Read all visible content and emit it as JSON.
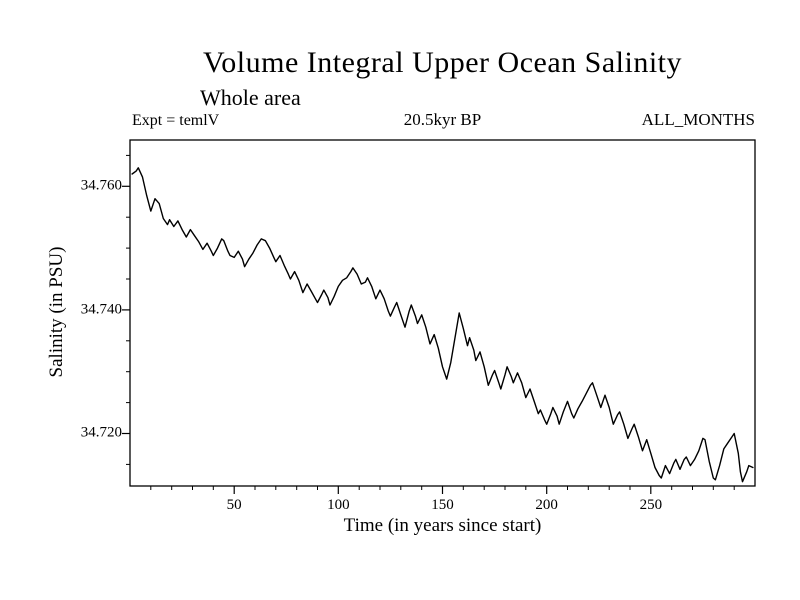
{
  "page": {
    "background": "#ffffff",
    "foreground": "#000000"
  },
  "chart_data": {
    "type": "line",
    "title": "Volume Integral Upper Ocean Salinity",
    "subtitle": "Whole area",
    "annotations": {
      "left": "Expt = temlV",
      "center": "20.5kyr BP",
      "right": "ALL_MONTHS"
    },
    "xlabel": "Time (in years since start)",
    "ylabel": "Salinity (in PSU)",
    "xlim": [
      0,
      300
    ],
    "ylim": [
      34.7115,
      34.7675
    ],
    "x_ticks": [
      50,
      100,
      150,
      200,
      250
    ],
    "x_minor_step": 10,
    "y_ticks": [
      34.72,
      34.74,
      34.76
    ],
    "y_tick_labels": [
      "34.720",
      "34.740",
      "34.760"
    ],
    "y_minor_step": 0.005,
    "grid": false,
    "legend": "none",
    "line_color": "#000000",
    "series": [
      {
        "name": "Volume integral upper ocean salinity",
        "points": [
          [
            1,
            34.762
          ],
          [
            3,
            34.7625
          ],
          [
            4,
            34.763
          ],
          [
            6,
            34.7615
          ],
          [
            8,
            34.7585
          ],
          [
            10,
            34.756
          ],
          [
            12,
            34.758
          ],
          [
            14,
            34.7572
          ],
          [
            16,
            34.7548
          ],
          [
            18,
            34.7538
          ],
          [
            19,
            34.7546
          ],
          [
            21,
            34.7535
          ],
          [
            23,
            34.7544
          ],
          [
            25,
            34.753
          ],
          [
            27,
            34.7518
          ],
          [
            29,
            34.753
          ],
          [
            31,
            34.752
          ],
          [
            33,
            34.751
          ],
          [
            35,
            34.7498
          ],
          [
            37,
            34.7508
          ],
          [
            39,
            34.7495
          ],
          [
            40,
            34.7488
          ],
          [
            42,
            34.75
          ],
          [
            44,
            34.7515
          ],
          [
            45,
            34.7512
          ],
          [
            47,
            34.7495
          ],
          [
            48,
            34.7488
          ],
          [
            50,
            34.7485
          ],
          [
            52,
            34.7495
          ],
          [
            54,
            34.7482
          ],
          [
            55,
            34.747
          ],
          [
            57,
            34.7482
          ],
          [
            59,
            34.7492
          ],
          [
            61,
            34.7505
          ],
          [
            63,
            34.7515
          ],
          [
            65,
            34.7512
          ],
          [
            67,
            34.75
          ],
          [
            69,
            34.7485
          ],
          [
            70,
            34.7478
          ],
          [
            72,
            34.7488
          ],
          [
            74,
            34.7472
          ],
          [
            76,
            34.7458
          ],
          [
            77,
            34.745
          ],
          [
            79,
            34.7462
          ],
          [
            81,
            34.7448
          ],
          [
            83,
            34.7428
          ],
          [
            85,
            34.7442
          ],
          [
            87,
            34.743
          ],
          [
            89,
            34.7418
          ],
          [
            90,
            34.7412
          ],
          [
            92,
            34.7425
          ],
          [
            93,
            34.7432
          ],
          [
            95,
            34.742
          ],
          [
            96,
            34.7408
          ],
          [
            98,
            34.7422
          ],
          [
            100,
            34.7438
          ],
          [
            102,
            34.7448
          ],
          [
            104,
            34.7452
          ],
          [
            106,
            34.7462
          ],
          [
            107,
            34.7468
          ],
          [
            109,
            34.7458
          ],
          [
            111,
            34.7442
          ],
          [
            113,
            34.7445
          ],
          [
            114,
            34.7452
          ],
          [
            116,
            34.7438
          ],
          [
            118,
            34.7418
          ],
          [
            120,
            34.7432
          ],
          [
            122,
            34.7418
          ],
          [
            124,
            34.7398
          ],
          [
            125,
            34.739
          ],
          [
            127,
            34.7405
          ],
          [
            128,
            34.7412
          ],
          [
            130,
            34.7392
          ],
          [
            132,
            34.7372
          ],
          [
            134,
            34.7398
          ],
          [
            135,
            34.7408
          ],
          [
            137,
            34.739
          ],
          [
            138,
            34.7378
          ],
          [
            140,
            34.7392
          ],
          [
            142,
            34.7372
          ],
          [
            144,
            34.7345
          ],
          [
            146,
            34.736
          ],
          [
            148,
            34.7338
          ],
          [
            150,
            34.7308
          ],
          [
            152,
            34.7288
          ],
          [
            154,
            34.7315
          ],
          [
            156,
            34.7355
          ],
          [
            158,
            34.7395
          ],
          [
            160,
            34.737
          ],
          [
            162,
            34.7342
          ],
          [
            163,
            34.7355
          ],
          [
            165,
            34.7335
          ],
          [
            166,
            34.7318
          ],
          [
            168,
            34.7332
          ],
          [
            170,
            34.7308
          ],
          [
            172,
            34.7278
          ],
          [
            174,
            34.7295
          ],
          [
            175,
            34.7302
          ],
          [
            177,
            34.7282
          ],
          [
            178,
            34.7272
          ],
          [
            180,
            34.7295
          ],
          [
            181,
            34.7308
          ],
          [
            183,
            34.7292
          ],
          [
            184,
            34.7282
          ],
          [
            186,
            34.7298
          ],
          [
            188,
            34.7282
          ],
          [
            190,
            34.7258
          ],
          [
            192,
            34.7272
          ],
          [
            194,
            34.7252
          ],
          [
            196,
            34.7232
          ],
          [
            197,
            34.7238
          ],
          [
            199,
            34.7222
          ],
          [
            200,
            34.7215
          ],
          [
            202,
            34.7232
          ],
          [
            203,
            34.7242
          ],
          [
            205,
            34.7228
          ],
          [
            206,
            34.7215
          ],
          [
            208,
            34.7235
          ],
          [
            210,
            34.7252
          ],
          [
            212,
            34.7232
          ],
          [
            213,
            34.7225
          ],
          [
            215,
            34.724
          ],
          [
            217,
            34.7252
          ],
          [
            219,
            34.7265
          ],
          [
            221,
            34.7278
          ],
          [
            222,
            34.7282
          ],
          [
            224,
            34.7262
          ],
          [
            226,
            34.7242
          ],
          [
            228,
            34.7262
          ],
          [
            230,
            34.7242
          ],
          [
            232,
            34.7215
          ],
          [
            234,
            34.723
          ],
          [
            235,
            34.7235
          ],
          [
            237,
            34.7215
          ],
          [
            239,
            34.7192
          ],
          [
            241,
            34.7208
          ],
          [
            242,
            34.7215
          ],
          [
            244,
            34.7195
          ],
          [
            246,
            34.7172
          ],
          [
            248,
            34.719
          ],
          [
            250,
            34.7168
          ],
          [
            252,
            34.7145
          ],
          [
            254,
            34.7132
          ],
          [
            255,
            34.7128
          ],
          [
            257,
            34.7148
          ],
          [
            259,
            34.7135
          ],
          [
            261,
            34.7152
          ],
          [
            262,
            34.7158
          ],
          [
            264,
            34.7142
          ],
          [
            266,
            34.7158
          ],
          [
            267,
            34.7162
          ],
          [
            269,
            34.7148
          ],
          [
            271,
            34.7158
          ],
          [
            273,
            34.7172
          ],
          [
            275,
            34.7192
          ],
          [
            276,
            34.719
          ],
          [
            278,
            34.7155
          ],
          [
            280,
            34.7128
          ],
          [
            281,
            34.7125
          ],
          [
            283,
            34.7148
          ],
          [
            285,
            34.7175
          ],
          [
            287,
            34.7185
          ],
          [
            289,
            34.7195
          ],
          [
            290,
            34.72
          ],
          [
            292,
            34.7168
          ],
          [
            293,
            34.7138
          ],
          [
            294,
            34.7122
          ],
          [
            296,
            34.7138
          ],
          [
            297,
            34.7148
          ],
          [
            299,
            34.7145
          ]
        ]
      }
    ]
  }
}
